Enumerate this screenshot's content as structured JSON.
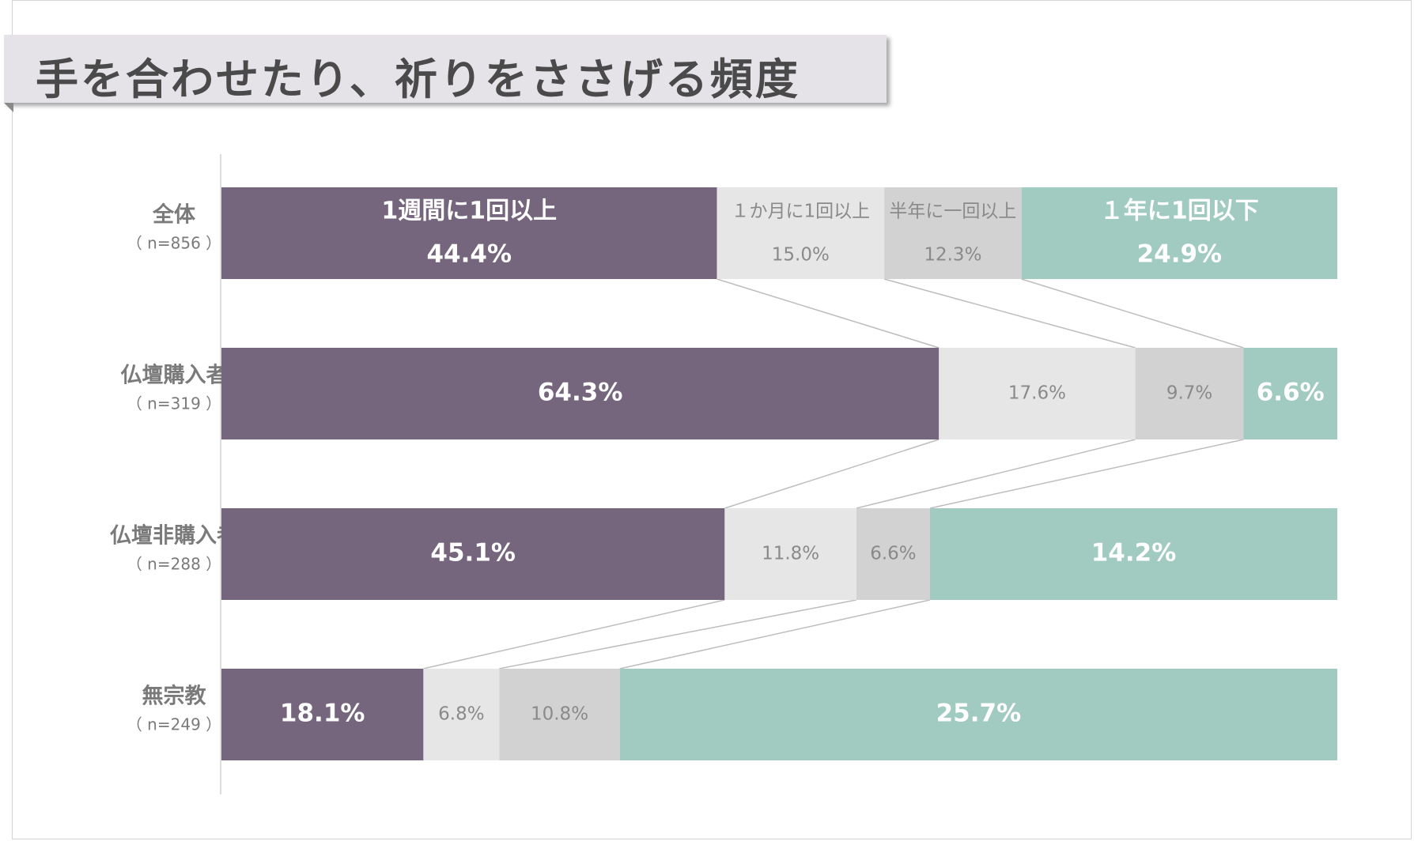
{
  "title": "手を合わせたり、祈りをささげる頻度",
  "colors": {
    "weekly": "#75667d",
    "monthly": "#e6e6e6",
    "halfyear": "#d2d2d2",
    "yearly": "#a1cbc1",
    "connector": "#bdbdbd",
    "axis": "#d0d0d0"
  },
  "chart_data": {
    "type": "bar",
    "orientation": "horizontal",
    "stacked": true,
    "categories": [
      {
        "name": "全体",
        "n": "（ n=856 ）"
      },
      {
        "name": "仏壇購入者",
        "n": "（ n=319 ）"
      },
      {
        "name": "仏壇非購入者",
        "n": "（ n=288 ）"
      },
      {
        "name": "無宗教",
        "n": "（ n=249 ）"
      }
    ],
    "series": [
      {
        "name": "1週間に1回以上",
        "values": [
          44.4,
          64.3,
          45.1,
          18.1
        ],
        "labels": [
          "44.4%",
          "64.3%",
          "45.1%",
          "18.1%"
        ],
        "style": "dark"
      },
      {
        "name": "１か月に1回以上",
        "values": [
          15.0,
          17.6,
          11.8,
          6.8
        ],
        "labels": [
          "15.0%",
          "17.6%",
          "11.8%",
          "6.8%"
        ],
        "style": "light"
      },
      {
        "name": "半年に一回以上",
        "values": [
          12.3,
          9.7,
          6.6,
          10.8
        ],
        "labels": [
          "12.3%",
          "9.7%",
          "6.6%",
          "10.8%"
        ],
        "style": "light"
      },
      {
        "name": "１年に1回以下",
        "values": [
          24.9,
          6.6,
          14.2,
          25.7
        ],
        "labels": [
          "24.9%",
          "6.6%",
          "14.2%",
          "25.7%"
        ],
        "style": "dark"
      }
    ],
    "xlim": [
      0,
      100
    ],
    "series_connectors": true,
    "legend": "inside-first-bar",
    "grid": false
  }
}
